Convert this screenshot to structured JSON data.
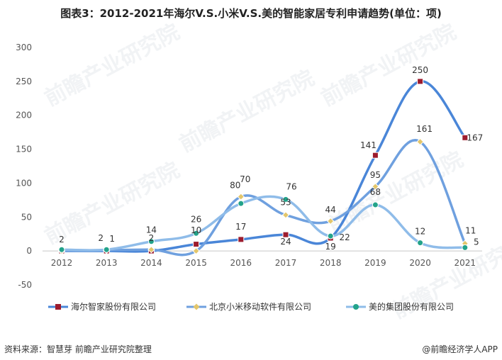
{
  "title": "图表3：2012-2021年海尔V.S.小米V.S.美的智能家居专利申请趋势(单位：项)",
  "source": "资料来源：智慧芽 前瞻产业研究院整理",
  "credit": "@前瞻经济学人APP",
  "watermark": "前瞻产业研究院",
  "chart_data": {
    "type": "line",
    "smooth": true,
    "categories": [
      "2012",
      "2013",
      "2014",
      "2015",
      "2016",
      "2017",
      "2018",
      "2019",
      "2020",
      "2021"
    ],
    "ylim": [
      -50,
      300
    ],
    "yticks": [
      -50,
      0,
      50,
      100,
      150,
      200,
      250,
      300
    ],
    "legend_position": "bottom",
    "grid": false,
    "series": [
      {
        "name": "海尔智家股份有限公司",
        "color": "#4a86d8",
        "marker": "square",
        "marker_color": "#9c1c2e",
        "values": [
          0,
          0,
          0,
          10,
          17,
          24,
          19,
          141,
          250,
          167
        ],
        "labels": [
          "",
          "",
          "",
          "",
          "17",
          "24",
          "19",
          "141",
          "250",
          "167"
        ]
      },
      {
        "name": "北京小米移动软件有限公司",
        "color": "#6fa0df",
        "marker": "diamond",
        "marker_color": "#e3c66b",
        "values": [
          0,
          1,
          2,
          0,
          80,
          53,
          44,
          95,
          161,
          11
        ],
        "labels": [
          "",
          "1",
          "2",
          "",
          "80",
          "53",
          "44",
          "95",
          "161",
          "11"
        ]
      },
      {
        "name": "美的集团股份有限公司",
        "color": "#8fbce9",
        "marker": "circle",
        "marker_color": "#23a38a",
        "values": [
          2,
          2,
          14,
          26,
          70,
          76,
          22,
          68,
          12,
          5
        ],
        "labels": [
          "2",
          "2",
          "14",
          "26",
          "70",
          "76",
          "22",
          "68",
          "12",
          "5"
        ]
      }
    ],
    "extra_labels": [
      "10"
    ]
  }
}
